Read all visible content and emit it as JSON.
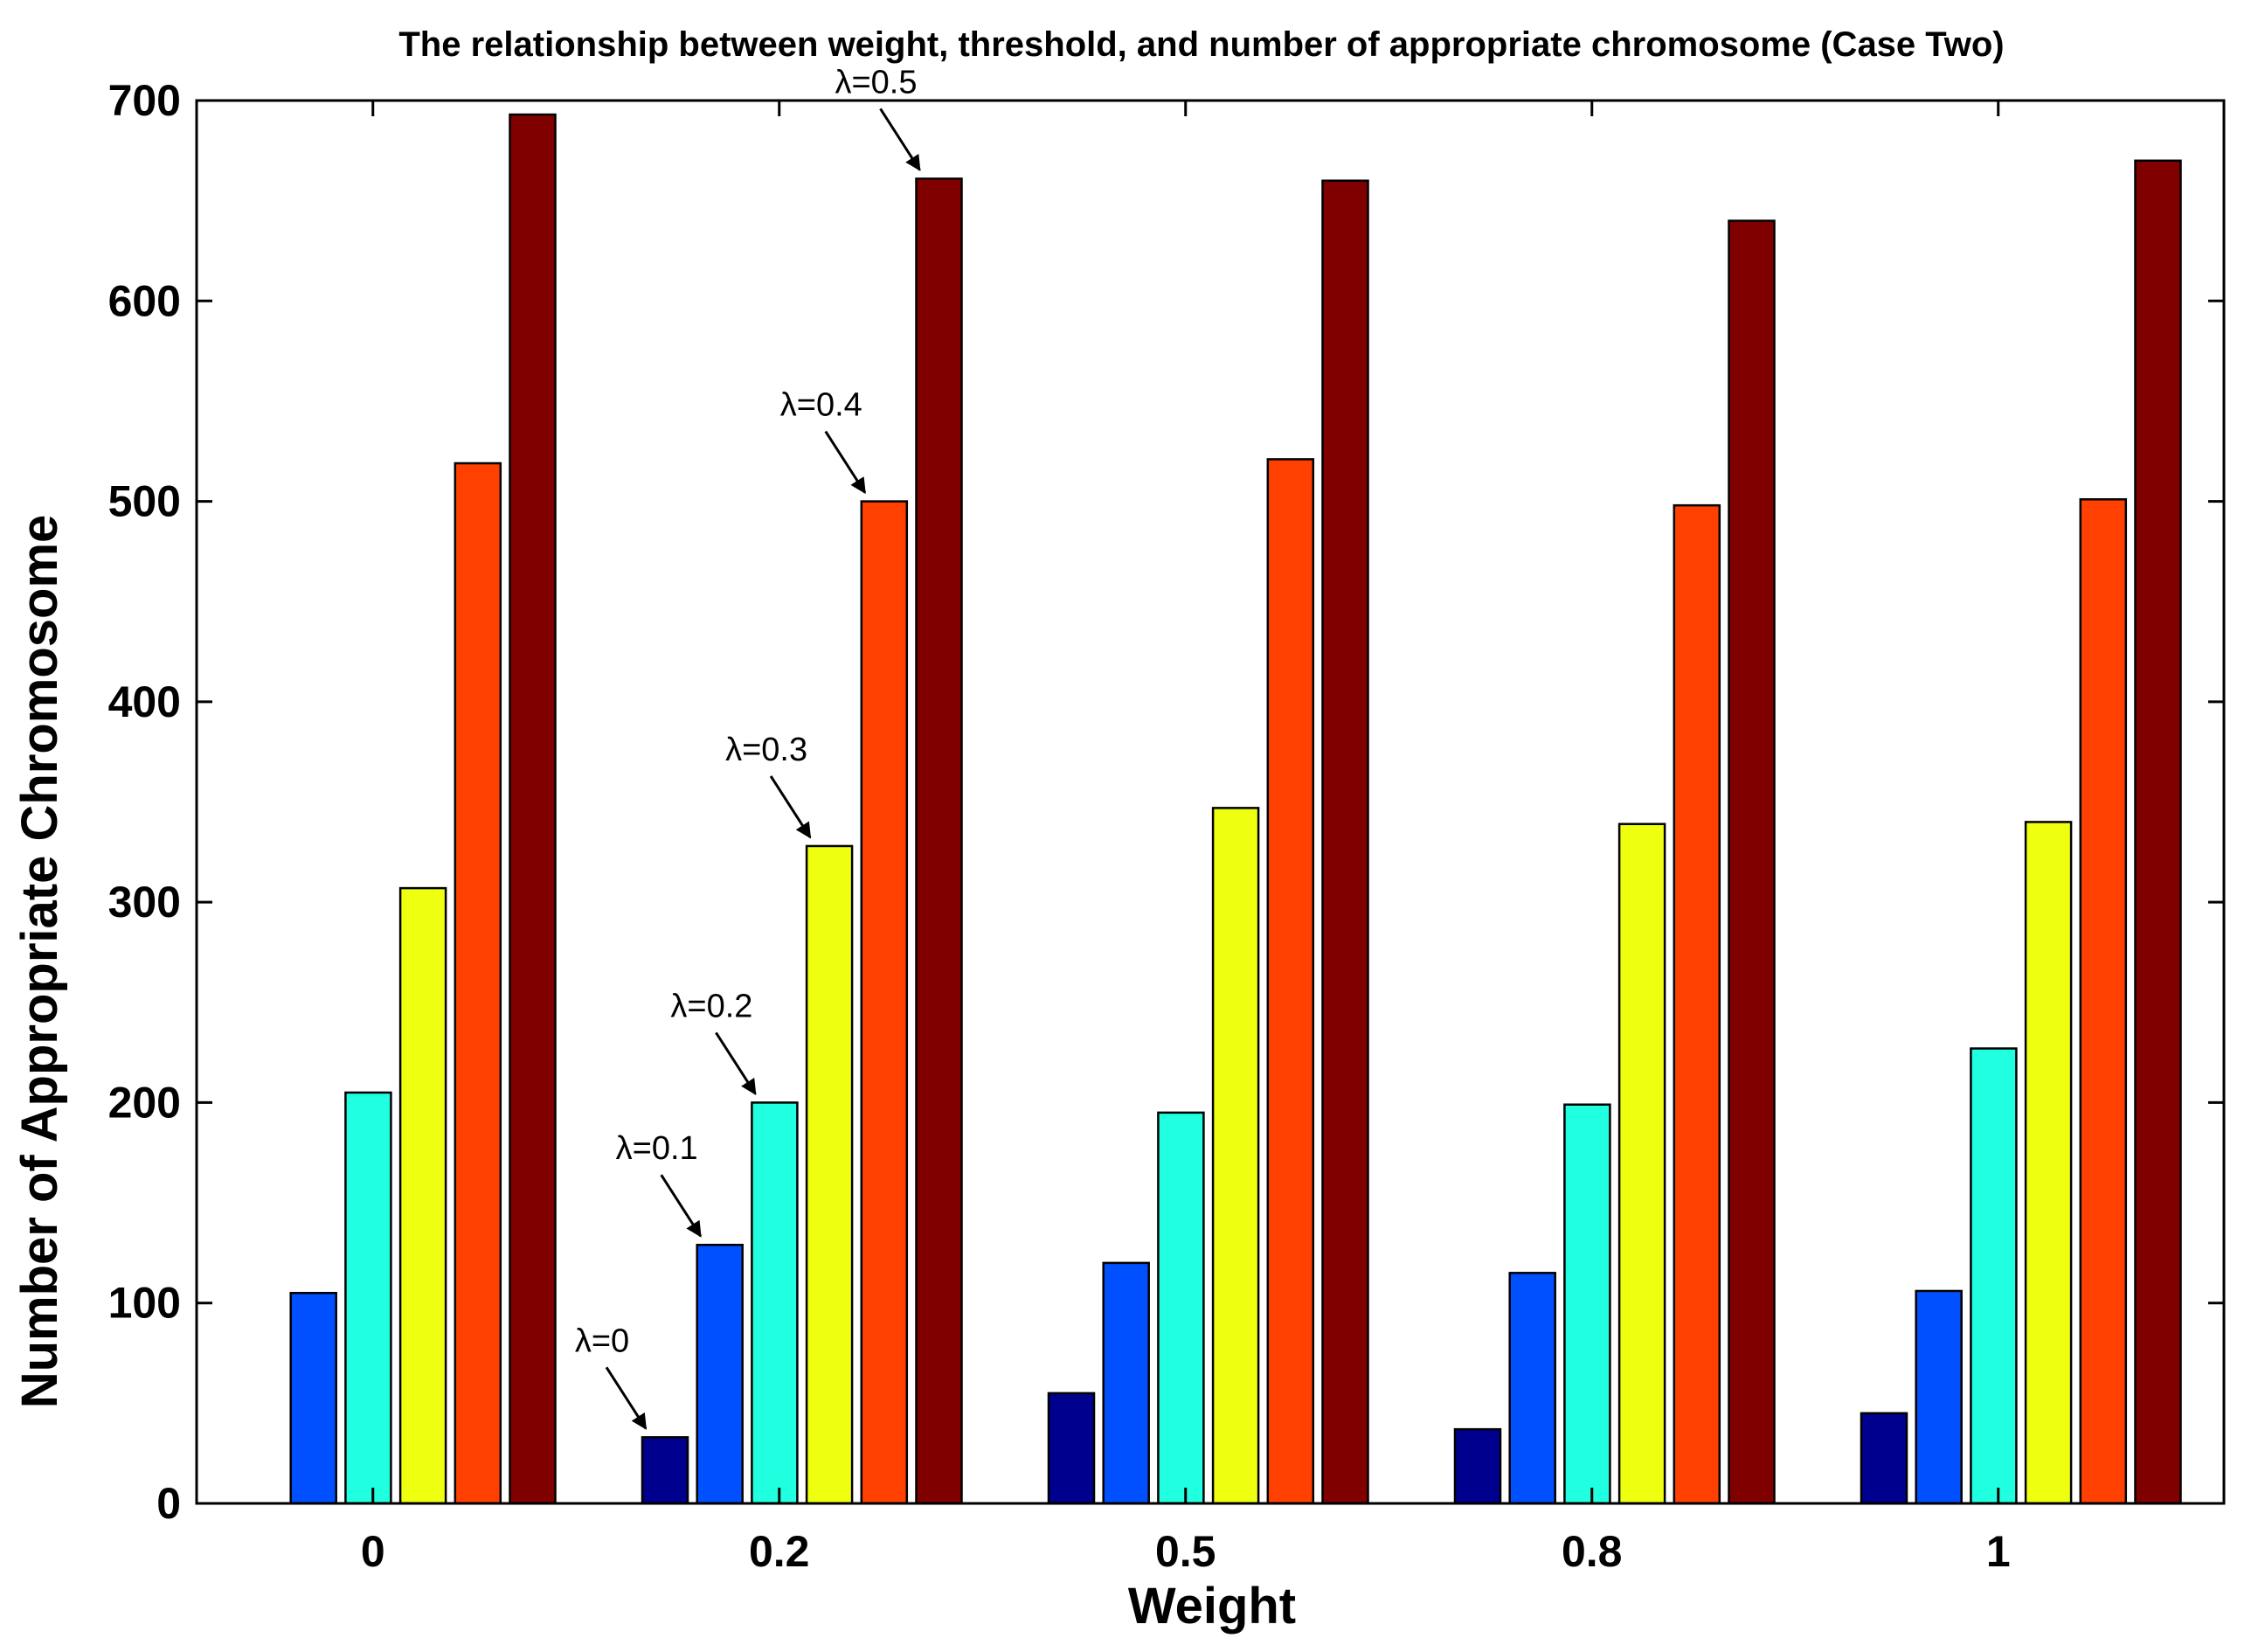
{
  "chart_data": {
    "type": "bar",
    "title": "The relationship between weight, threshold, and number of appropriate chromosome (Case Two)",
    "xlabel": "Weight",
    "ylabel": "Number of Appropriate Chromosome",
    "categories": [
      "0",
      "0.2",
      "0.5",
      "0.8",
      "1"
    ],
    "ylim": [
      0,
      700
    ],
    "yticks": [
      "0",
      "100",
      "200",
      "300",
      "400",
      "500",
      "600",
      "700"
    ],
    "series": [
      {
        "name": "λ=0",
        "color": "#00008f",
        "values": [
          0,
          33,
          55,
          37,
          45
        ]
      },
      {
        "name": "λ=0.1",
        "color": "#0050ff",
        "values": [
          105,
          129,
          120,
          115,
          106
        ]
      },
      {
        "name": "λ=0.2",
        "color": "#20ffdf",
        "values": [
          205,
          200,
          195,
          199,
          227
        ]
      },
      {
        "name": "λ=0.3",
        "color": "#efff10",
        "values": [
          307,
          328,
          347,
          339,
          340
        ]
      },
      {
        "name": "λ=0.4",
        "color": "#ff4000",
        "values": [
          519,
          500,
          521,
          498,
          501
        ]
      },
      {
        "name": "λ=0.5",
        "color": "#800000",
        "values": [
          693,
          661,
          660,
          640,
          670
        ]
      }
    ],
    "annotations": [
      {
        "text": "λ=0",
        "series": 0,
        "category": 1
      },
      {
        "text": "λ=0.1",
        "series": 1,
        "category": 1
      },
      {
        "text": "λ=0.2",
        "series": 2,
        "category": 1
      },
      {
        "text": "λ=0.3",
        "series": 3,
        "category": 1
      },
      {
        "text": "λ=0.4",
        "series": 4,
        "category": 1
      },
      {
        "text": "λ=0.5",
        "series": 5,
        "category": 1
      }
    ],
    "grid": false,
    "legend": "none"
  }
}
